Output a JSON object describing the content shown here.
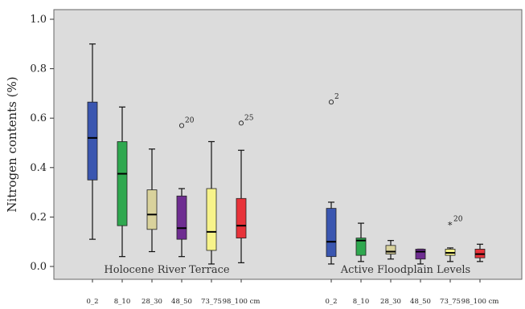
{
  "chart_data": {
    "type": "boxplot",
    "ylabel": "Nitrogen contents (%)",
    "ylim": [
      0,
      1.0
    ],
    "yticks": [
      "0.0",
      "0.2",
      "0.4",
      "0.6",
      "0.8",
      "1.0"
    ],
    "groups": [
      {
        "name": "Holocene River Terrace",
        "boxes": [
          {
            "category": "0_2",
            "color": "#3a56b0",
            "min": 0.11,
            "q1": 0.35,
            "median": 0.52,
            "q3": 0.665,
            "max": 0.9
          },
          {
            "category": "8_10",
            "color": "#2fa84f",
            "min": 0.04,
            "q1": 0.165,
            "median": 0.375,
            "q3": 0.505,
            "max": 0.645
          },
          {
            "category": "28_30",
            "color": "#d9d29c",
            "min": 0.06,
            "q1": 0.15,
            "median": 0.21,
            "q3": 0.31,
            "max": 0.475
          },
          {
            "category": "48_50",
            "color": "#6e2d91",
            "min": 0.04,
            "q1": 0.11,
            "median": 0.155,
            "q3": 0.285,
            "max": 0.315,
            "outliers": [
              {
                "value": 0.57,
                "label": "20",
                "marker": "o"
              }
            ]
          },
          {
            "category": "73_75",
            "color": "#f7f38a",
            "min": 0.01,
            "q1": 0.065,
            "median": 0.14,
            "q3": 0.315,
            "max": 0.505
          },
          {
            "category": "98_100 cm",
            "color": "#e8333a",
            "min": 0.015,
            "q1": 0.115,
            "median": 0.165,
            "q3": 0.275,
            "max": 0.47,
            "outliers": [
              {
                "value": 0.58,
                "label": "25",
                "marker": "o"
              }
            ]
          }
        ]
      },
      {
        "name": "Active Floodplain Levels",
        "boxes": [
          {
            "category": "0_2",
            "color": "#3a56b0",
            "min": 0.01,
            "q1": 0.04,
            "median": 0.1,
            "q3": 0.235,
            "max": 0.26,
            "outliers": [
              {
                "value": 0.665,
                "label": "2",
                "marker": "o"
              }
            ]
          },
          {
            "category": "8_10",
            "color": "#2fa84f",
            "min": 0.02,
            "q1": 0.045,
            "median": 0.105,
            "q3": 0.115,
            "max": 0.175
          },
          {
            "category": "28_30",
            "color": "#d9d29c",
            "min": 0.03,
            "q1": 0.05,
            "median": 0.06,
            "q3": 0.085,
            "max": 0.105
          },
          {
            "category": "48_50",
            "color": "#6e2d91",
            "min": 0.01,
            "q1": 0.03,
            "median": 0.06,
            "q3": 0.07,
            "max": 0.07
          },
          {
            "category": "73_75",
            "color": "#f7f38a",
            "min": 0.02,
            "q1": 0.045,
            "median": 0.055,
            "q3": 0.07,
            "max": 0.075,
            "outliers": [
              {
                "value": 0.17,
                "label": "20",
                "marker": "*"
              }
            ]
          },
          {
            "category": "98_100 cm",
            "color": "#e8333a",
            "min": 0.02,
            "q1": 0.035,
            "median": 0.05,
            "q3": 0.07,
            "max": 0.09
          }
        ]
      }
    ],
    "x_tick_labels": [
      "0_2",
      "8_10",
      "28_30",
      "48_50",
      "73_75",
      "98_100 cm"
    ],
    "grid": false,
    "legend": "none"
  }
}
